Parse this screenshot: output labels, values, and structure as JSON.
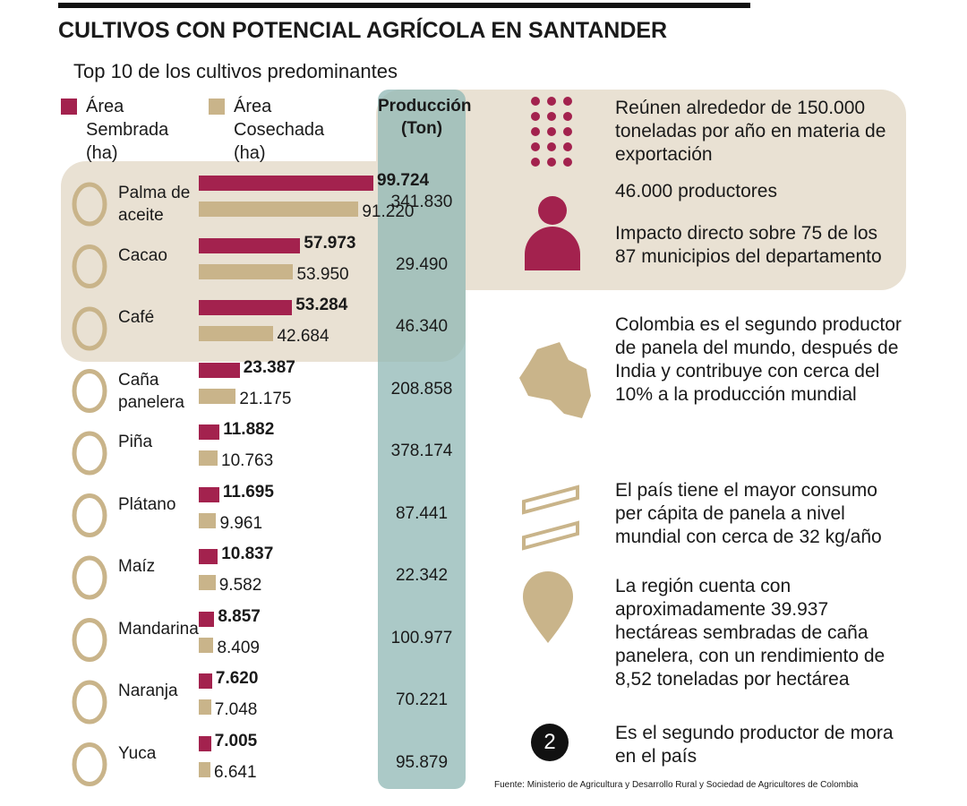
{
  "chart_data": {
    "type": "bar",
    "orientation": "horizontal",
    "title": "CULTIVOS CON POTENCIAL AGRÍCOLA EN SANTANDER",
    "subtitle": "Top 10 de los cultivos predominantes",
    "categories": [
      "Palma de aceite",
      "Cacao",
      "Café",
      "Caña panelera",
      "Piña",
      "Plátano",
      "Maíz",
      "Mandarina",
      "Naranja",
      "Yuca"
    ],
    "series": [
      {
        "name": "Área Sembrada (ha)",
        "color": "#a3224e",
        "values": [
          99724,
          57973,
          53284,
          23387,
          11882,
          11695,
          10837,
          8857,
          7620,
          7005
        ],
        "value_labels": [
          "99.724",
          "57.973",
          "53.284",
          "23.387",
          "11.882",
          "11.695",
          "10.837",
          "8.857",
          "7.620",
          "7.005"
        ]
      },
      {
        "name": "Área Cosechada (ha)",
        "color": "#c9b48a",
        "values": [
          91220,
          53950,
          42684,
          21175,
          10763,
          9961,
          9582,
          8409,
          7048,
          6641
        ],
        "value_labels": [
          "91.220",
          "53.950",
          "42.684",
          "21.175",
          "10.763",
          "9.961",
          "9.582",
          "8.409",
          "7.048",
          "6.641"
        ]
      }
    ],
    "production": {
      "title": "Producción (Ton)",
      "values": [
        341830,
        29490,
        46340,
        208858,
        378174,
        87441,
        22342,
        100977,
        70221,
        95879
      ],
      "value_labels": [
        "341.830",
        "29.490",
        "46.340",
        "208.858",
        "378.174",
        "87.441",
        "22.342",
        "100.977",
        "70.221",
        "95.879"
      ]
    }
  },
  "facts": [
    {
      "text": "Reúnen alrededor de 150.000 toneladas por año en materia de exportación"
    },
    {
      "text": "46.000 productores"
    },
    {
      "text": "Impacto directo sobre 75 de los 87 municipios del departamento"
    },
    {
      "text": "Colombia es el segundo productor de panela del mundo, después de India y contribuye con cerca del 10% a la producción mundial"
    },
    {
      "text": "El país tiene el mayor consumo per cápita de panela a nivel mundial con cerca de 32 kg/año"
    },
    {
      "text": "La región cuenta con aproximadamente 39.937 hectáreas sembradas de caña panelera, con un rendimiento de 8,52 toneladas por hectárea"
    },
    {
      "text": "Es el segundo productor de mora en el país",
      "badge": "2"
    }
  ],
  "source": "Fuente: Ministerio de Agricultura y Desarrollo Rural y Sociedad de Agricultores de Colombia"
}
